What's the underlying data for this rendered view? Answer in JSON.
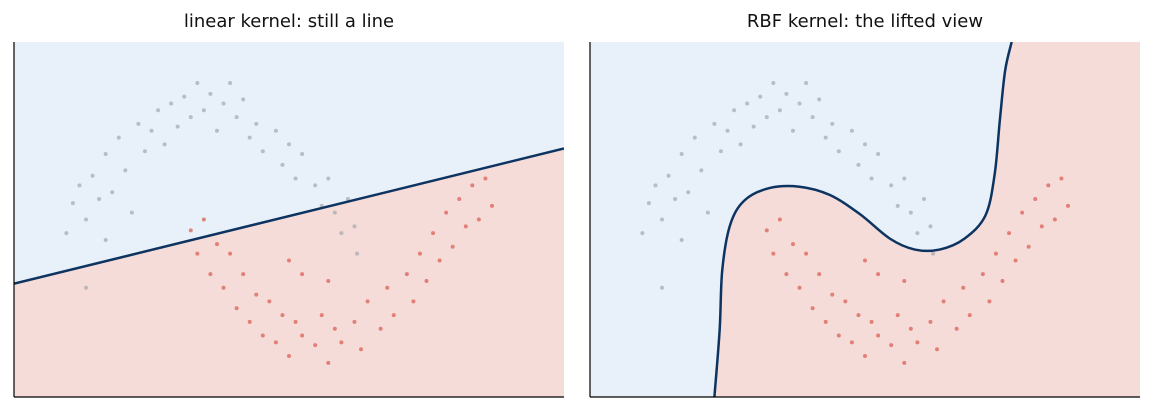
{
  "chart_data": [
    {
      "type": "scatter",
      "title": "linear kernel: still a line",
      "xlim": [
        -1.6,
        2.6
      ],
      "ylim": [
        -1.0,
        1.6
      ],
      "region_colors": [
        "#e8f0f9",
        "#f5dcd9"
      ],
      "boundary_color": "#0d3461",
      "boundary": {
        "x": [
          -1.6,
          2.6
        ],
        "y": [
          -0.17,
          0.82
        ]
      },
      "series": [
        {
          "color": "#a3a7ae",
          "x": [
            -1.15,
            -1.1,
            -1.05,
            -1.0,
            -0.95,
            -0.9,
            -0.85,
            -0.8,
            -0.75,
            -0.7,
            -0.65,
            -0.6,
            -0.55,
            -0.5,
            -0.45,
            -0.4,
            -0.35,
            -0.3,
            -0.25,
            -0.2,
            -0.15,
            -0.1,
            -0.05,
            0.0,
            0.05,
            0.1,
            0.15,
            0.2,
            0.25,
            0.3,
            0.4,
            0.45,
            0.5,
            0.55,
            0.6,
            0.7,
            0.75,
            0.8,
            0.85,
            0.9,
            0.95,
            1.0,
            1.02,
            -1.2,
            -0.9,
            -1.05
          ],
          "y": [
            0.42,
            0.55,
            0.3,
            0.62,
            0.45,
            0.78,
            0.5,
            0.9,
            0.66,
            0.35,
            1.0,
            0.8,
            0.95,
            1.1,
            0.85,
            1.15,
            0.98,
            1.2,
            1.05,
            1.3,
            1.1,
            1.22,
            0.95,
            1.15,
            1.3,
            1.05,
            1.18,
            0.9,
            1.0,
            0.8,
            0.95,
            0.7,
            0.85,
            0.6,
            0.78,
            0.55,
            0.4,
            0.6,
            0.35,
            0.2,
            0.45,
            0.25,
            0.05,
            0.2,
            0.15,
            -0.2
          ]
        },
        {
          "color": "#d9584c",
          "x": [
            -0.25,
            -0.2,
            -0.15,
            -0.1,
            -0.05,
            0.0,
            0.05,
            0.1,
            0.15,
            0.2,
            0.25,
            0.3,
            0.35,
            0.4,
            0.45,
            0.5,
            0.55,
            0.6,
            0.7,
            0.75,
            0.8,
            0.85,
            0.9,
            1.0,
            1.05,
            1.1,
            1.2,
            1.25,
            1.3,
            1.4,
            1.45,
            1.5,
            1.55,
            1.6,
            1.65,
            1.7,
            1.75,
            1.8,
            1.85,
            1.9,
            1.95,
            2.0,
            2.05,
            0.6,
            0.5,
            0.8
          ],
          "y": [
            0.22,
            0.05,
            0.3,
            -0.1,
            0.12,
            -0.2,
            0.05,
            -0.35,
            -0.1,
            -0.45,
            -0.25,
            -0.55,
            -0.3,
            -0.6,
            -0.4,
            -0.7,
            -0.45,
            -0.55,
            -0.62,
            -0.4,
            -0.75,
            -0.5,
            -0.6,
            -0.45,
            -0.65,
            -0.3,
            -0.5,
            -0.2,
            -0.4,
            -0.1,
            -0.3,
            0.05,
            -0.15,
            0.2,
            0.0,
            0.35,
            0.1,
            0.45,
            0.25,
            0.55,
            0.3,
            0.6,
            0.4,
            -0.1,
            0.0,
            -0.15
          ]
        }
      ]
    },
    {
      "type": "scatter",
      "title": "RBF kernel: the lifted view",
      "xlim": [
        -1.6,
        2.6
      ],
      "ylim": [
        -1.0,
        1.6
      ],
      "region_colors": [
        "#e8f0f9",
        "#f5dcd9"
      ],
      "boundary_color": "#0d3461",
      "boundary": {
        "x": [
          -0.65,
          -0.61,
          -0.59,
          -0.53,
          -0.42,
          -0.23,
          0.0,
          0.23,
          0.46,
          0.69,
          0.88,
          1.07,
          1.26,
          1.42,
          1.49,
          1.53,
          1.57,
          1.62
        ],
        "y": [
          -1.0,
          -0.51,
          -0.07,
          0.26,
          0.44,
          0.53,
          0.54,
          0.48,
          0.34,
          0.16,
          0.08,
          0.08,
          0.16,
          0.33,
          0.63,
          1.03,
          1.39,
          1.6
        ]
      },
      "series": [
        {
          "color": "#a3a7ae",
          "x": [
            -1.15,
            -1.1,
            -1.05,
            -1.0,
            -0.95,
            -0.9,
            -0.85,
            -0.8,
            -0.75,
            -0.7,
            -0.65,
            -0.6,
            -0.55,
            -0.5,
            -0.45,
            -0.4,
            -0.35,
            -0.3,
            -0.25,
            -0.2,
            -0.15,
            -0.1,
            -0.05,
            0.0,
            0.05,
            0.1,
            0.15,
            0.2,
            0.25,
            0.3,
            0.4,
            0.45,
            0.5,
            0.55,
            0.6,
            0.7,
            0.75,
            0.8,
            0.85,
            0.9,
            0.95,
            1.0,
            1.02,
            -1.2,
            -0.9,
            -1.05
          ],
          "y": [
            0.42,
            0.55,
            0.3,
            0.62,
            0.45,
            0.78,
            0.5,
            0.9,
            0.66,
            0.35,
            1.0,
            0.8,
            0.95,
            1.1,
            0.85,
            1.15,
            0.98,
            1.2,
            1.05,
            1.3,
            1.1,
            1.22,
            0.95,
            1.15,
            1.3,
            1.05,
            1.18,
            0.9,
            1.0,
            0.8,
            0.95,
            0.7,
            0.85,
            0.6,
            0.78,
            0.55,
            0.4,
            0.6,
            0.35,
            0.2,
            0.45,
            0.25,
            0.05,
            0.2,
            0.15,
            -0.2
          ]
        },
        {
          "color": "#d9584c",
          "x": [
            -0.25,
            -0.2,
            -0.15,
            -0.1,
            -0.05,
            0.0,
            0.05,
            0.1,
            0.15,
            0.2,
            0.25,
            0.3,
            0.35,
            0.4,
            0.45,
            0.5,
            0.55,
            0.6,
            0.7,
            0.75,
            0.8,
            0.85,
            0.9,
            1.0,
            1.05,
            1.1,
            1.2,
            1.25,
            1.3,
            1.4,
            1.45,
            1.5,
            1.55,
            1.6,
            1.65,
            1.7,
            1.75,
            1.8,
            1.85,
            1.9,
            1.95,
            2.0,
            2.05,
            0.6,
            0.5,
            0.8
          ],
          "y": [
            0.22,
            0.05,
            0.3,
            -0.1,
            0.12,
            -0.2,
            0.05,
            -0.35,
            -0.1,
            -0.45,
            -0.25,
            -0.55,
            -0.3,
            -0.6,
            -0.4,
            -0.7,
            -0.45,
            -0.55,
            -0.62,
            -0.4,
            -0.75,
            -0.5,
            -0.6,
            -0.45,
            -0.65,
            -0.3,
            -0.5,
            -0.2,
            -0.4,
            -0.1,
            -0.3,
            0.05,
            -0.15,
            0.2,
            0.0,
            0.35,
            0.1,
            0.45,
            0.25,
            0.55,
            0.3,
            0.6,
            0.4,
            -0.1,
            0.0,
            -0.15
          ]
        }
      ]
    }
  ]
}
